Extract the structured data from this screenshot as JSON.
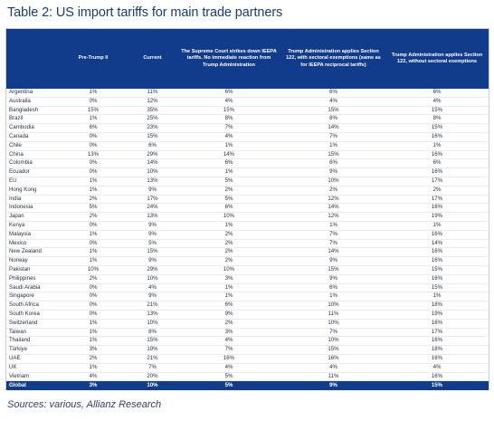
{
  "title": "Table 2: US import tariffs for main trade partners",
  "headers": [
    "",
    "Pre-Trump II",
    "Current",
    "The Supreme Court strikes down IEEPA tariffs. No immediate reaction from Trump Administration",
    "Trump Administration applies Section 122, with sectoral exemptions (same as for IEEPA reciprocal tariffs)",
    "Trump Administration applies Section 122, without sectoral exemptions"
  ],
  "rows": [
    [
      "Argentina",
      "1%",
      "11%",
      "6%",
      "6%",
      "6%"
    ],
    [
      "Australia",
      "0%",
      "12%",
      "4%",
      "4%",
      "4%"
    ],
    [
      "Bangladesh",
      "15%",
      "35%",
      "15%",
      "15%",
      "15%"
    ],
    [
      "Brazil",
      "1%",
      "25%",
      "8%",
      "8%",
      "8%"
    ],
    [
      "Cambodia",
      "6%",
      "23%",
      "7%",
      "14%",
      "15%"
    ],
    [
      "Canada",
      "0%",
      "15%",
      "4%",
      "7%",
      "16%"
    ],
    [
      "Chile",
      "0%",
      "6%",
      "1%",
      "1%",
      "1%"
    ],
    [
      "China",
      "13%",
      "29%",
      "14%",
      "15%",
      "16%"
    ],
    [
      "Colombia",
      "0%",
      "14%",
      "6%",
      "6%",
      "6%"
    ],
    [
      "Ecuador",
      "0%",
      "10%",
      "1%",
      "9%",
      "16%"
    ],
    [
      "EU",
      "1%",
      "13%",
      "5%",
      "10%",
      "17%"
    ],
    [
      "Hong Kong",
      "1%",
      "9%",
      "2%",
      "2%",
      "2%"
    ],
    [
      "India",
      "2%",
      "17%",
      "5%",
      "12%",
      "17%"
    ],
    [
      "Indonesia",
      "5%",
      "24%",
      "6%",
      "14%",
      "16%"
    ],
    [
      "Japan",
      "2%",
      "13%",
      "10%",
      "12%",
      "19%"
    ],
    [
      "Kenya",
      "0%",
      "9%",
      "1%",
      "1%",
      "1%"
    ],
    [
      "Malaysia",
      "1%",
      "9%",
      "2%",
      "7%",
      "16%"
    ],
    [
      "Mexico",
      "0%",
      "5%",
      "2%",
      "7%",
      "14%"
    ],
    [
      "New Zealand",
      "1%",
      "15%",
      "2%",
      "14%",
      "16%"
    ],
    [
      "Norway",
      "1%",
      "9%",
      "2%",
      "9%",
      "16%"
    ],
    [
      "Pakistan",
      "10%",
      "29%",
      "10%",
      "15%",
      "15%"
    ],
    [
      "Philippines",
      "2%",
      "10%",
      "3%",
      "9%",
      "16%"
    ],
    [
      "Saudi Arabia",
      "0%",
      "4%",
      "1%",
      "6%",
      "15%"
    ],
    [
      "Singapore",
      "0%",
      "9%",
      "1%",
      "1%",
      "1%"
    ],
    [
      "South Africa",
      "0%",
      "21%",
      "6%",
      "10%",
      "18%"
    ],
    [
      "South Korea",
      "0%",
      "13%",
      "9%",
      "11%",
      "19%"
    ],
    [
      "Switzerland",
      "1%",
      "10%",
      "2%",
      "10%",
      "16%"
    ],
    [
      "Taiwan",
      "1%",
      "8%",
      "3%",
      "7%",
      "17%"
    ],
    [
      "Thailand",
      "1%",
      "15%",
      "4%",
      "10%",
      "16%"
    ],
    [
      "Türkiye",
      "3%",
      "19%",
      "7%",
      "15%",
      "18%"
    ],
    [
      "UAE",
      "2%",
      "21%",
      "16%",
      "16%",
      "16%"
    ],
    [
      "UK",
      "1%",
      "7%",
      "4%",
      "4%",
      "4%"
    ],
    [
      "Vietnam",
      "4%",
      "20%",
      "5%",
      "11%",
      "16%"
    ]
  ],
  "total": [
    "Global",
    "3%",
    "10%",
    "5%",
    "9%",
    "15%"
  ],
  "source": "Sources: various, Allianz Research",
  "colors": {
    "header_bg": "#113c8c",
    "title": "#153d7a"
  }
}
